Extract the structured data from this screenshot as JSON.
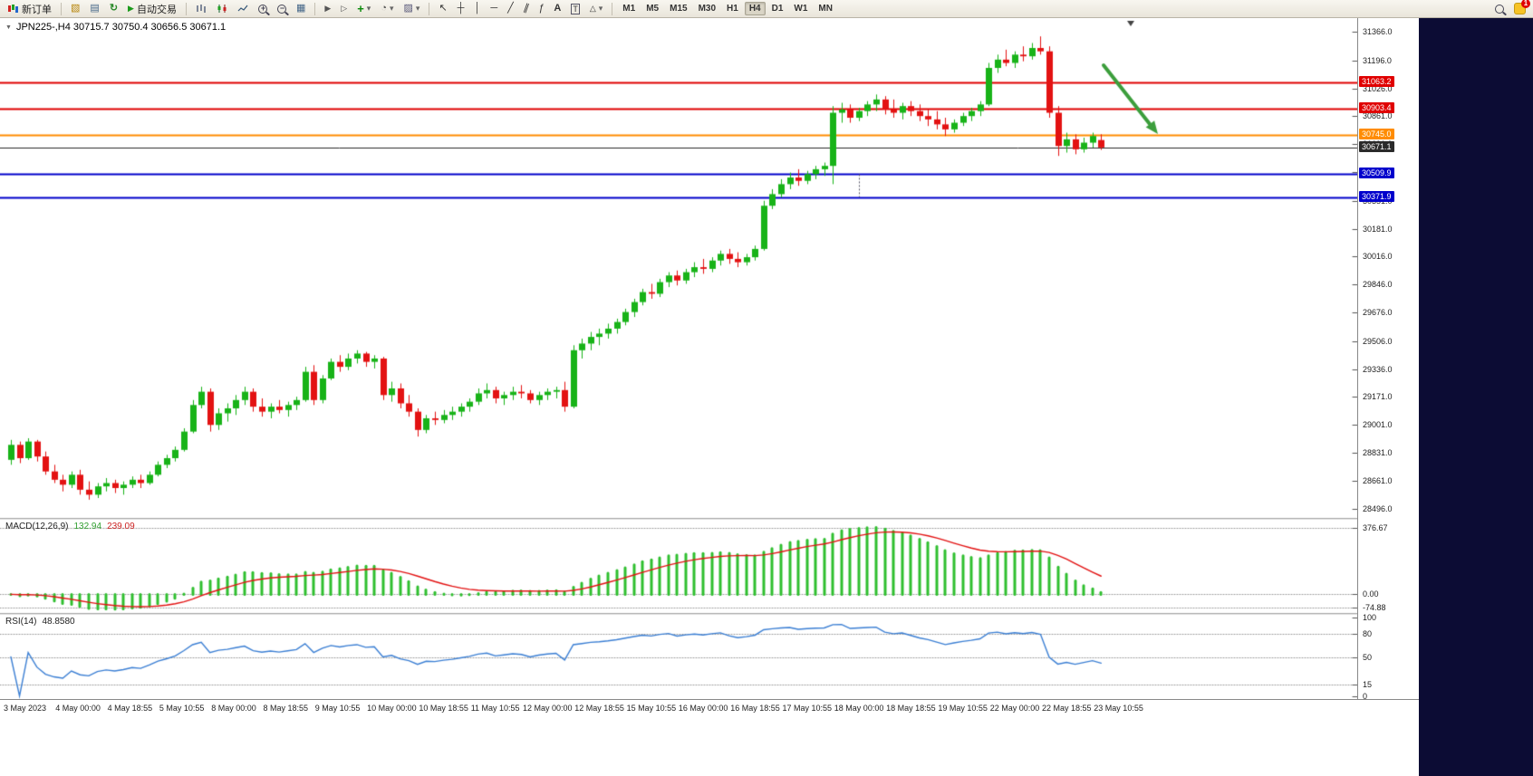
{
  "toolbar": {
    "new_order_label": "新订单",
    "auto_trading_label": "自动交易",
    "timeframes": [
      "M1",
      "M5",
      "M15",
      "M30",
      "H1",
      "H4",
      "D1",
      "W1",
      "MN"
    ],
    "active_timeframe": "H4",
    "notification_count": "1"
  },
  "icons": {
    "dropdown": "▾",
    "collapse": "▼",
    "new_chart": "▧",
    "profiles": "▤",
    "refresh": "↻",
    "auto_play": "▶",
    "tile_windows": "▦",
    "autoscroll": "▶",
    "chart_shift": "▷",
    "indicators_plus": "+",
    "clock": "◔",
    "template": "▨",
    "cursor": "↖",
    "crosshair": "┼",
    "vertical_line": "│",
    "horizontal_line": "─",
    "trendline": "╱",
    "channel": "∥",
    "fibonacci": "ƒ",
    "text": "A",
    "text_label": "T",
    "shape": "△",
    "zoom_plus": "+",
    "zoom_minus": "−"
  },
  "chart": {
    "title": "JPN225-,H4 30715.7 30750.4 30656.5 30671.1",
    "up_color": "#18b318",
    "down_color": "#e31212",
    "arrow_color": "#3c9e3c",
    "price_range": {
      "min": 28440,
      "max": 31450
    },
    "y_ticks": [
      31366,
      31196,
      31026,
      30861,
      30691,
      30521,
      30351,
      30181,
      30016,
      29846,
      29676,
      29506,
      29336,
      29171,
      29001,
      28831,
      28661,
      28496
    ],
    "levels": [
      {
        "value": 31063.2,
        "color": "#e00000",
        "width": 2
      },
      {
        "value": 30903.4,
        "color": "#e00000",
        "width": 2
      },
      {
        "value": 30745.0,
        "color": "#ff8c00",
        "width": 2
      },
      {
        "value": 30671.1,
        "color": "#2a2a2a",
        "width": 1
      },
      {
        "value": 30509.9,
        "color": "#0000cc",
        "width": 2
      },
      {
        "value": 30371.9,
        "color": "#0000cc",
        "width": 2
      }
    ],
    "time_labels": [
      "3 May 2023",
      "4 May 00:00",
      "4 May 18:55",
      "5 May 10:55",
      "8 May 00:00",
      "8 May 18:55",
      "9 May 10:55",
      "10 May 00:00",
      "10 May 18:55",
      "11 May 10:55",
      "12 May 00:00",
      "12 May 18:55",
      "15 May 10:55",
      "16 May 00:00",
      "16 May 18:55",
      "17 May 10:55",
      "18 May 00:00",
      "18 May 18:55",
      "19 May 10:55",
      "22 May 00:00",
      "22 May 18:55",
      "23 May 10:55"
    ],
    "candles": [
      [
        28790,
        28910,
        28760,
        28880
      ],
      [
        28880,
        28900,
        28770,
        28800
      ],
      [
        28800,
        28920,
        28790,
        28900
      ],
      [
        28900,
        28910,
        28780,
        28810
      ],
      [
        28810,
        28840,
        28700,
        28720
      ],
      [
        28720,
        28760,
        28650,
        28670
      ],
      [
        28670,
        28700,
        28600,
        28640
      ],
      [
        28640,
        28720,
        28620,
        28700
      ],
      [
        28700,
        28730,
        28580,
        28610
      ],
      [
        28610,
        28660,
        28550,
        28580
      ],
      [
        28580,
        28650,
        28560,
        28630
      ],
      [
        28630,
        28680,
        28600,
        28650
      ],
      [
        28650,
        28670,
        28590,
        28620
      ],
      [
        28620,
        28660,
        28580,
        28640
      ],
      [
        28640,
        28690,
        28620,
        28670
      ],
      [
        28670,
        28700,
        28620,
        28650
      ],
      [
        28650,
        28720,
        28640,
        28700
      ],
      [
        28700,
        28780,
        28690,
        28760
      ],
      [
        28760,
        28820,
        28740,
        28800
      ],
      [
        28800,
        28870,
        28780,
        28850
      ],
      [
        28850,
        28980,
        28840,
        28960
      ],
      [
        28960,
        29150,
        28950,
        29120
      ],
      [
        29120,
        29230,
        29100,
        29200
      ],
      [
        29200,
        29220,
        28960,
        29000
      ],
      [
        29000,
        29100,
        28970,
        29070
      ],
      [
        29070,
        29130,
        29020,
        29100
      ],
      [
        29100,
        29180,
        29060,
        29150
      ],
      [
        29150,
        29230,
        29120,
        29200
      ],
      [
        29200,
        29220,
        29080,
        29110
      ],
      [
        29110,
        29160,
        29050,
        29080
      ],
      [
        29080,
        29130,
        29040,
        29110
      ],
      [
        29110,
        29150,
        29070,
        29090
      ],
      [
        29090,
        29140,
        29050,
        29120
      ],
      [
        29120,
        29170,
        29090,
        29150
      ],
      [
        29150,
        29350,
        29140,
        29320
      ],
      [
        29320,
        29360,
        29120,
        29150
      ],
      [
        29150,
        29300,
        29130,
        29280
      ],
      [
        29280,
        29400,
        29270,
        29380
      ],
      [
        29380,
        29420,
        29320,
        29350
      ],
      [
        29350,
        29430,
        29330,
        29400
      ],
      [
        29400,
        29450,
        29370,
        29430
      ],
      [
        29430,
        29440,
        29350,
        29380
      ],
      [
        29380,
        29420,
        29340,
        29400
      ],
      [
        29400,
        29410,
        29150,
        29180
      ],
      [
        29180,
        29260,
        29140,
        29220
      ],
      [
        29220,
        29250,
        29100,
        29130
      ],
      [
        29130,
        29180,
        29050,
        29080
      ],
      [
        29080,
        29100,
        28930,
        28970
      ],
      [
        28970,
        29060,
        28950,
        29040
      ],
      [
        29040,
        29080,
        29000,
        29030
      ],
      [
        29030,
        29090,
        29010,
        29060
      ],
      [
        29060,
        29110,
        29030,
        29080
      ],
      [
        29080,
        29130,
        29050,
        29110
      ],
      [
        29110,
        29160,
        29080,
        29140
      ],
      [
        29140,
        29220,
        29120,
        29190
      ],
      [
        29190,
        29250,
        29160,
        29210
      ],
      [
        29210,
        29230,
        29130,
        29160
      ],
      [
        29160,
        29200,
        29120,
        29180
      ],
      [
        29180,
        29230,
        29150,
        29200
      ],
      [
        29200,
        29240,
        29160,
        29190
      ],
      [
        29190,
        29210,
        29130,
        29150
      ],
      [
        29150,
        29200,
        29120,
        29180
      ],
      [
        29180,
        29220,
        29150,
        29200
      ],
      [
        29200,
        29230,
        29160,
        29210
      ],
      [
        29210,
        29260,
        29080,
        29110
      ],
      [
        29110,
        29480,
        29100,
        29450
      ],
      [
        29450,
        29520,
        29400,
        29490
      ],
      [
        29490,
        29560,
        29450,
        29530
      ],
      [
        29530,
        29580,
        29480,
        29550
      ],
      [
        29550,
        29610,
        29520,
        29580
      ],
      [
        29580,
        29640,
        29550,
        29620
      ],
      [
        29620,
        29700,
        29600,
        29680
      ],
      [
        29680,
        29760,
        29650,
        29740
      ],
      [
        29740,
        29820,
        29720,
        29800
      ],
      [
        29800,
        29850,
        29760,
        29790
      ],
      [
        29790,
        29880,
        29770,
        29860
      ],
      [
        29860,
        29920,
        29830,
        29900
      ],
      [
        29900,
        29930,
        29840,
        29870
      ],
      [
        29870,
        29940,
        29850,
        29920
      ],
      [
        29920,
        29980,
        29890,
        29950
      ],
      [
        29950,
        30000,
        29910,
        29940
      ],
      [
        29940,
        30010,
        29920,
        29990
      ],
      [
        29990,
        30050,
        29960,
        30030
      ],
      [
        30030,
        30060,
        29970,
        30000
      ],
      [
        30000,
        30040,
        29950,
        29980
      ],
      [
        29980,
        30030,
        29960,
        30010
      ],
      [
        30010,
        30080,
        29990,
        30060
      ],
      [
        30060,
        30350,
        30050,
        30320
      ],
      [
        30320,
        30420,
        30300,
        30390
      ],
      [
        30390,
        30480,
        30370,
        30450
      ],
      [
        30450,
        30520,
        30420,
        30490
      ],
      [
        30490,
        30540,
        30440,
        30470
      ],
      [
        30470,
        30530,
        30450,
        30510
      ],
      [
        30510,
        30560,
        30480,
        30540
      ],
      [
        30540,
        30580,
        30500,
        30560
      ],
      [
        30560,
        30920,
        30450,
        30880
      ],
      [
        30880,
        30940,
        30820,
        30900
      ],
      [
        30900,
        30930,
        30820,
        30850
      ],
      [
        30850,
        30910,
        30830,
        30890
      ],
      [
        30890,
        30950,
        30860,
        30930
      ],
      [
        30930,
        30990,
        30890,
        30960
      ],
      [
        30960,
        30980,
        30870,
        30900
      ],
      [
        30900,
        30960,
        30850,
        30880
      ],
      [
        30880,
        30940,
        30840,
        30920
      ],
      [
        30920,
        30950,
        30860,
        30890
      ],
      [
        30890,
        30930,
        30830,
        30860
      ],
      [
        30860,
        30900,
        30800,
        30840
      ],
      [
        30840,
        30890,
        30780,
        30810
      ],
      [
        30810,
        30850,
        30740,
        30780
      ],
      [
        30780,
        30840,
        30760,
        30820
      ],
      [
        30820,
        30880,
        30800,
        30860
      ],
      [
        30860,
        30910,
        30830,
        30890
      ],
      [
        30890,
        30950,
        30860,
        30930
      ],
      [
        30930,
        31180,
        30920,
        31150
      ],
      [
        31150,
        31230,
        31120,
        31200
      ],
      [
        31200,
        31260,
        31160,
        31180
      ],
      [
        31180,
        31250,
        31150,
        31230
      ],
      [
        31230,
        31280,
        31190,
        31220
      ],
      [
        31220,
        31300,
        31200,
        31270
      ],
      [
        31270,
        31340,
        31230,
        31250
      ],
      [
        31250,
        31280,
        30850,
        30880
      ],
      [
        30880,
        30920,
        30620,
        30680
      ],
      [
        30680,
        30760,
        30640,
        30720
      ],
      [
        30720,
        30750,
        30630,
        30660
      ],
      [
        30660,
        30730,
        30640,
        30700
      ],
      [
        30700,
        30760,
        30670,
        30740
      ],
      [
        30715.7,
        30750.4,
        30656.5,
        30671.1
      ]
    ]
  },
  "macd": {
    "name": "MACD(12,26,9)",
    "value_main": "132.94",
    "value_signal": "239.09",
    "ticks": [
      376.67,
      0,
      -74.88
    ],
    "range": {
      "min": -105,
      "max": 420
    },
    "scale_to": 376.67,
    "histogram_color": "#2fbf2f",
    "signal_color": "#e31212"
  },
  "rsi": {
    "name": "RSI(14)",
    "value": "48.8580",
    "ticks": [
      100,
      80,
      50,
      15,
      0
    ],
    "level_lines": [
      80,
      50,
      15
    ],
    "range": {
      "min": -4,
      "max": 104
    },
    "line_color": "#3b7fd4"
  }
}
